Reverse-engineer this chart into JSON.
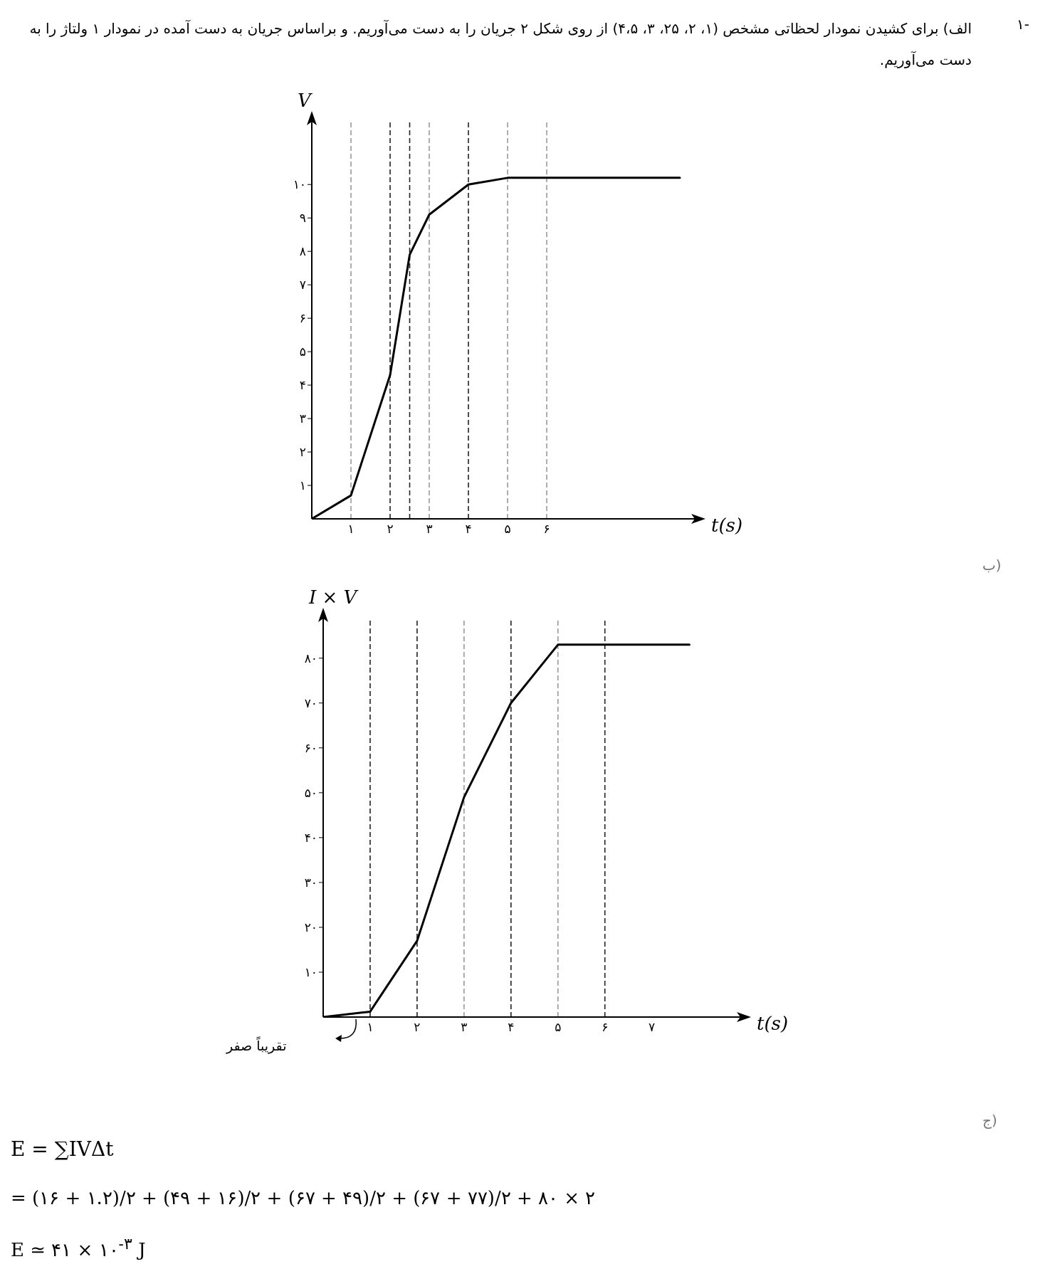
{
  "chart_data": [
    {
      "type": "line",
      "title": "الف) برای کشیدن نمودار لحظاتی مشخص (۱، ۲، ۲۵، ۳، ۴،۵) از روی شکل ۲ جریان را به دست می‌آوریم. و براساس جریان به دست آمده در نمودار ۱ ولتاژ را به دست می‌آوریم.",
      "annotations": [
        "۱-"
      ],
      "xlabel": "t(s)",
      "ylabel": "V",
      "x": [
        0,
        1,
        2,
        2.5,
        3,
        4,
        5,
        9.4
      ],
      "values": [
        0,
        0.7,
        4.3,
        7.9,
        9.1,
        10,
        10.2,
        10.2
      ],
      "color": "#000000",
      "xlim": [
        0,
        9.8
      ],
      "ylim": [
        0,
        11.9
      ],
      "xticks": [
        {
          "value": 1,
          "label": "۱"
        },
        {
          "value": 2,
          "label": "۲"
        },
        {
          "value": 3,
          "label": "۳"
        },
        {
          "value": 4,
          "label": "۴"
        },
        {
          "value": 5,
          "label": "۵"
        },
        {
          "value": 6,
          "label": "۶"
        }
      ],
      "yticks": [
        {
          "value": 1,
          "label": "۱"
        },
        {
          "value": 2,
          "label": "۲"
        },
        {
          "value": 3,
          "label": "۳"
        },
        {
          "value": 4,
          "label": "۴"
        },
        {
          "value": 5,
          "label": "۵"
        },
        {
          "value": 6,
          "label": "۶"
        },
        {
          "value": 7,
          "label": "۷"
        },
        {
          "value": 8,
          "label": "۸"
        },
        {
          "value": 9,
          "label": "۹"
        },
        {
          "value": 10,
          "label": "۱۰"
        }
      ],
      "ref_lines": [
        {
          "axis": "x",
          "value": 1,
          "color": "#999999",
          "line_style": "dashed"
        },
        {
          "axis": "x",
          "value": 2,
          "color": "#222222",
          "line_style": "dashed"
        },
        {
          "axis": "x",
          "value": 2.5,
          "color": "#222222",
          "line_style": "dashed"
        },
        {
          "axis": "x",
          "value": 3,
          "color": "#999999",
          "line_style": "dashed"
        },
        {
          "axis": "x",
          "value": 4,
          "color": "#222222",
          "line_style": "dashed"
        },
        {
          "axis": "x",
          "value": 5,
          "color": "#999999",
          "line_style": "dashed"
        },
        {
          "axis": "x",
          "value": 6,
          "color": "#999999",
          "line_style": "dashed"
        }
      ],
      "marker": "none",
      "line_style": "solid"
    },
    {
      "type": "line",
      "annotations": [
        "ب)",
        "تقریباً صفر",
        "ج)",
        "E = ∑IVΔt",
        "= (۱۶ + ۱.۲)/۲ + (۴۹ + ۱۶)/۲ + (۶۷ + ۴۹)/۲ + (۶۷ + ۷۷)/۲ + ۸۰ × ۲",
        "E ≃ ۴۱ × ۱۰$^{-۳}$ J"
      ],
      "xlabel": "t(s)",
      "ylabel": "I × V",
      "x": [
        0,
        1,
        2,
        3,
        4,
        5,
        7.8
      ],
      "values": [
        0,
        1.2,
        17,
        49,
        70,
        83,
        83
      ],
      "color": "#000000",
      "xlim": [
        0,
        8.9
      ],
      "ylim": [
        0,
        89
      ],
      "xticks": [
        {
          "value": 1,
          "label": "۱"
        },
        {
          "value": 2,
          "label": "۲"
        },
        {
          "value": 3,
          "label": "۳"
        },
        {
          "value": 4,
          "label": "۴"
        },
        {
          "value": 5,
          "label": "۵"
        },
        {
          "value": 6,
          "label": "۶"
        },
        {
          "value": 7,
          "label": "۷"
        }
      ],
      "yticks": [
        {
          "value": 10,
          "label": "۱۰"
        },
        {
          "value": 20,
          "label": "۲۰"
        },
        {
          "value": 30,
          "label": "۳۰"
        },
        {
          "value": 40,
          "label": "۴۰"
        },
        {
          "value": 50,
          "label": "۵۰"
        },
        {
          "value": 60,
          "label": "۶۰"
        },
        {
          "value": 70,
          "label": "۷۰"
        },
        {
          "value": 80,
          "label": "۸۰"
        }
      ],
      "ref_lines": [
        {
          "axis": "x",
          "value": 1,
          "color": "#222222",
          "line_style": "dashed"
        },
        {
          "axis": "x",
          "value": 2,
          "color": "#222222",
          "line_style": "dashed"
        },
        {
          "axis": "x",
          "value": 3,
          "color": "#999999",
          "line_style": "dashed"
        },
        {
          "axis": "x",
          "value": 4,
          "color": "#222222",
          "line_style": "dashed"
        },
        {
          "axis": "x",
          "value": 5,
          "color": "#999999",
          "line_style": "dashed"
        },
        {
          "axis": "x",
          "value": 6,
          "color": "#222222",
          "line_style": "dashed"
        }
      ],
      "marker": "none",
      "line_style": "solid"
    }
  ]
}
